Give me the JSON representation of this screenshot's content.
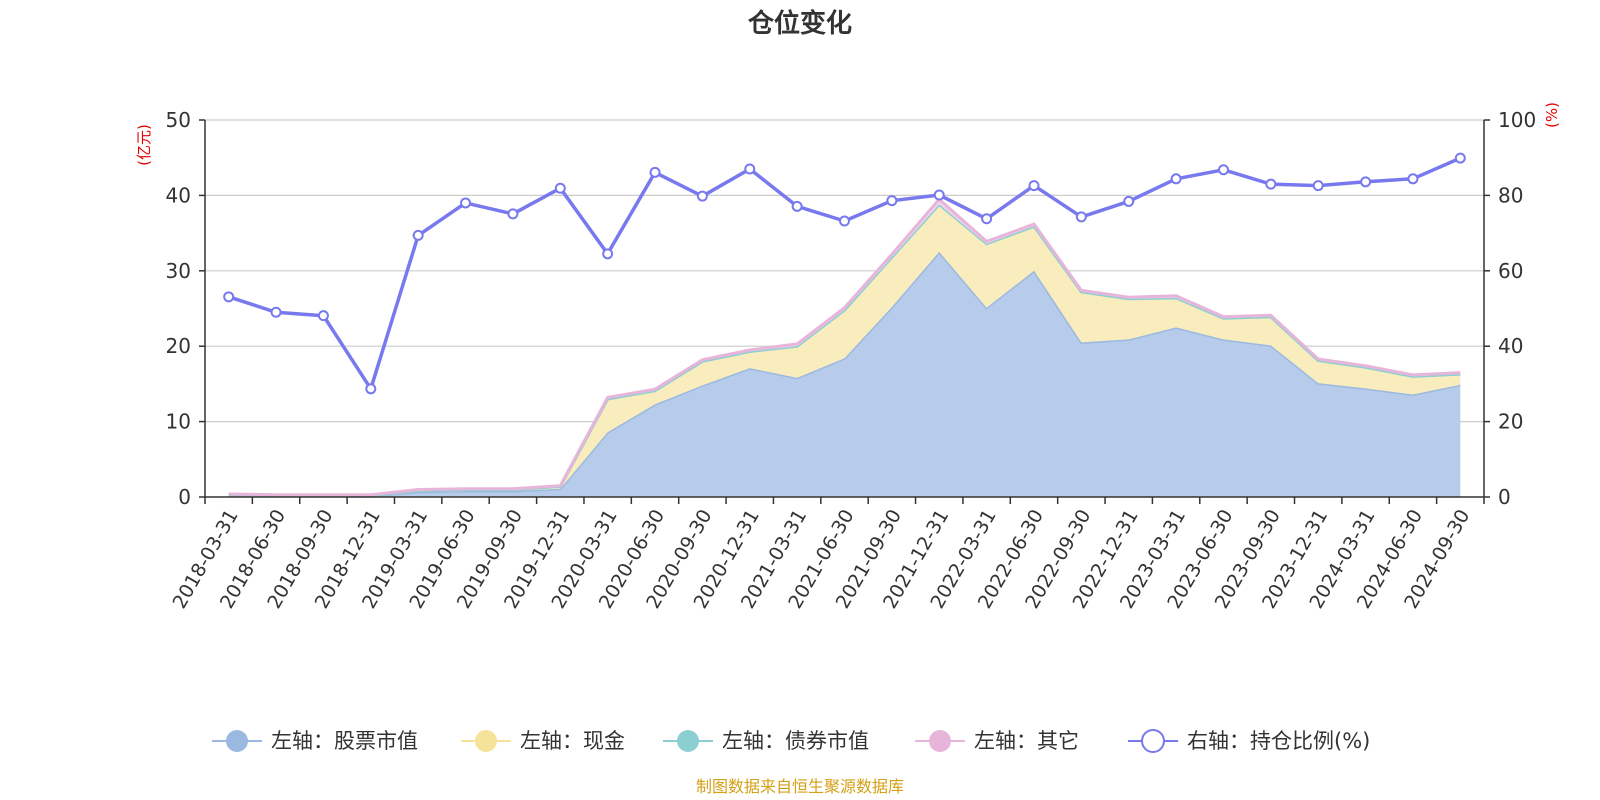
{
  "chart_data": {
    "type": "area",
    "title": "仓位变化",
    "left_axis_unit": "(亿元)",
    "right_axis_unit": "(%)",
    "left_ylim": [
      0,
      50
    ],
    "left_yticks": [
      0,
      10,
      20,
      30,
      40,
      50
    ],
    "right_ylim": [
      0,
      100
    ],
    "right_yticks": [
      0,
      20,
      40,
      60,
      80,
      100
    ],
    "grid": true,
    "legend_position": "bottom",
    "categories": [
      "2018-03-31",
      "2018-06-30",
      "2018-09-30",
      "2018-12-31",
      "2019-03-31",
      "2019-06-30",
      "2019-09-30",
      "2019-12-31",
      "2020-03-31",
      "2020-06-30",
      "2020-09-30",
      "2020-12-31",
      "2021-03-31",
      "2021-06-30",
      "2021-09-30",
      "2021-12-31",
      "2022-03-31",
      "2022-06-30",
      "2022-09-30",
      "2022-12-31",
      "2023-03-31",
      "2023-06-30",
      "2023-09-30",
      "2023-12-31",
      "2024-03-31",
      "2024-06-30",
      "2024-09-30"
    ],
    "series": [
      {
        "name": "左轴：股票市值",
        "axis": "left",
        "stack": true,
        "color": "#9bb9e0",
        "fill": "#b7cceb",
        "values": [
          0.2,
          0.15,
          0.15,
          0.1,
          0.7,
          0.8,
          0.8,
          1.1,
          8.6,
          12.3,
          14.8,
          17.1,
          15.8,
          18.4,
          25.2,
          32.5,
          25.1,
          30.0,
          20.5,
          20.9,
          22.5,
          20.9,
          20.1,
          15.1,
          14.4,
          13.6,
          14.9
        ]
      },
      {
        "name": "左轴：现金",
        "axis": "left",
        "stack": true,
        "color": "#f5e39a",
        "fill": "#faedbd",
        "values": [
          0.1,
          0.1,
          0.1,
          0.1,
          0.2,
          0.2,
          0.2,
          0.3,
          4.4,
          1.8,
          3.2,
          2.2,
          4.2,
          6.4,
          6.6,
          6.3,
          8.5,
          5.9,
          6.7,
          5.4,
          3.9,
          2.8,
          3.8,
          3.0,
          2.8,
          2.4,
          1.4
        ]
      },
      {
        "name": "左轴：债券市值",
        "axis": "left",
        "stack": true,
        "color": "#8ccfd3",
        "fill": "#b9e3e6",
        "values": [
          0,
          0,
          0,
          0,
          0,
          0,
          0,
          0,
          0,
          0,
          0,
          0,
          0,
          0,
          0,
          0,
          0,
          0,
          0,
          0,
          0,
          0,
          0,
          0,
          0,
          0,
          0
        ]
      },
      {
        "name": "左轴：其它",
        "axis": "left",
        "stack": true,
        "color": "#e8b5da",
        "fill": "#f2d3ea",
        "values": [
          0.1,
          0.05,
          0.05,
          0.1,
          0.1,
          0.1,
          0.1,
          0.1,
          0.2,
          0.2,
          0.2,
          0.2,
          0.3,
          0.3,
          0.4,
          0.7,
          0.3,
          0.3,
          0.2,
          0.2,
          0.3,
          0.2,
          0.2,
          0.2,
          0.2,
          0.2,
          0.2
        ]
      },
      {
        "name": "右轴：持仓比例(%)",
        "axis": "right",
        "stack": false,
        "color": "#7879ee",
        "values": [
          53.1,
          49.0,
          48.1,
          28.7,
          69.4,
          78.0,
          75.1,
          81.9,
          64.5,
          86.1,
          79.8,
          87.0,
          77.1,
          73.2,
          78.6,
          80.1,
          73.8,
          82.6,
          74.3,
          78.4,
          84.4,
          86.8,
          83.0,
          82.6,
          83.6,
          84.4,
          89.9
        ]
      }
    ],
    "source_text": "制图数据来自恒生聚源数据库"
  }
}
